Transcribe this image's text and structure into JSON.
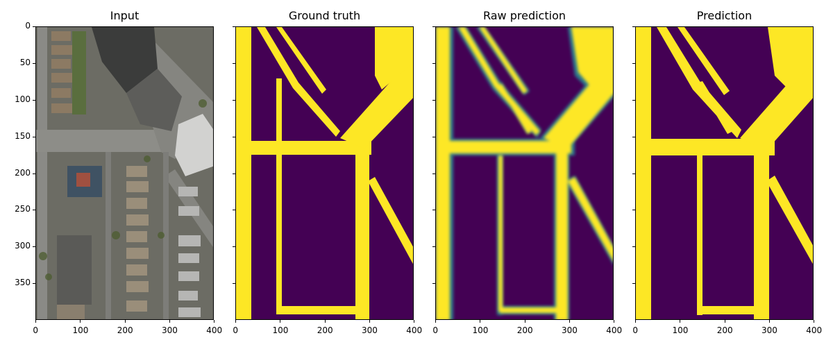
{
  "panels": [
    {
      "title": "Input"
    },
    {
      "title": "Ground truth"
    },
    {
      "title": "Raw prediction"
    },
    {
      "title": "Prediction"
    }
  ],
  "xticks": [
    "0",
    "100",
    "200",
    "300",
    "400"
  ],
  "yticks": [
    "0",
    "50",
    "100",
    "150",
    "200",
    "250",
    "300",
    "350"
  ],
  "colors": {
    "mask_bg": "#440154",
    "mask_fg": "#fde725",
    "edge": "#2a788e",
    "satellite_base": "#6f6f6f"
  }
}
